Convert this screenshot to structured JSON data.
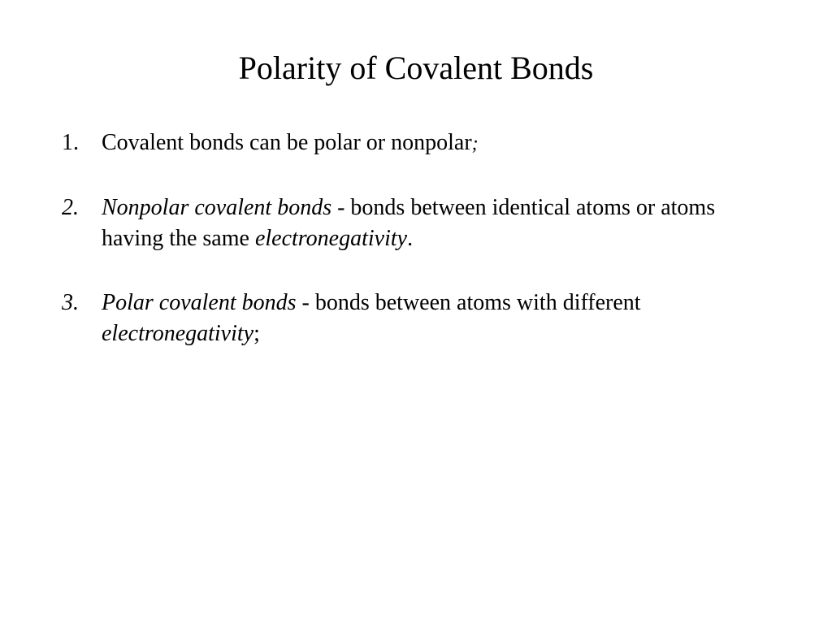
{
  "slide": {
    "title": "Polarity of Covalent Bonds",
    "background_color": "#ffffff",
    "text_color": "#000000",
    "title_fontsize": 40,
    "body_fontsize": 28,
    "font_family": "Times New Roman",
    "items": [
      {
        "num": "1.",
        "num_style": "normal",
        "runs": [
          {
            "text": "Covalent bonds can be polar or nonpolar",
            "style": "normal"
          },
          {
            "text": ";",
            "style": "semi"
          }
        ]
      },
      {
        "num": "2.",
        "num_style": "italic",
        "runs": [
          {
            "text": "Nonpolar covalent bonds",
            "style": "italic"
          },
          {
            "text": " - bonds between identical atoms or atoms having the same ",
            "style": "normal"
          },
          {
            "text": "electronegativity",
            "style": "italic"
          },
          {
            "text": ".",
            "style": "normal"
          }
        ]
      },
      {
        "num": "3.",
        "num_style": "italic",
        "runs": [
          {
            "text": "Polar covalent bonds",
            "style": "italic"
          },
          {
            "text": " - bonds between atoms with different ",
            "style": "normal"
          },
          {
            "text": "electronegativity",
            "style": "italic"
          },
          {
            "text": ";",
            "style": "normal"
          }
        ]
      }
    ]
  }
}
